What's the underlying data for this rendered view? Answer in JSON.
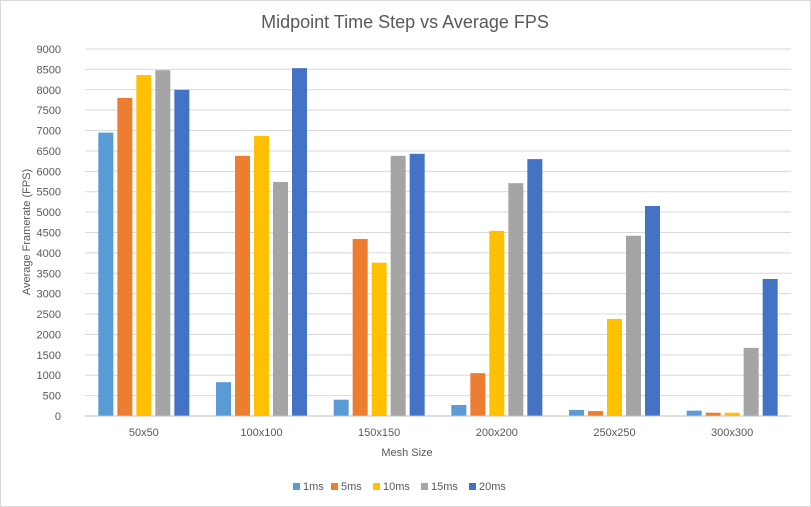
{
  "chart_data": {
    "type": "bar",
    "title": "Midpoint Time Step vs Average FPS",
    "xlabel": "Mesh Size",
    "ylabel": "Average Framerate (FPS)",
    "ylim": [
      0,
      9000
    ],
    "ytick_step": 500,
    "grid": true,
    "legend_position": "bottom",
    "categories": [
      "50x50",
      "100x100",
      "150x150",
      "200x200",
      "250x250",
      "300x300"
    ],
    "series": [
      {
        "name": "1ms",
        "color": "#5b9bd5",
        "values": [
          6950,
          830,
          400,
          270,
          150,
          130
        ]
      },
      {
        "name": "5ms",
        "color": "#ed7d31",
        "values": [
          7800,
          6380,
          4340,
          1050,
          120,
          80
        ]
      },
      {
        "name": "10ms",
        "color": "#ffc000",
        "values": [
          8360,
          6870,
          3760,
          4540,
          2380,
          80
        ]
      },
      {
        "name": "15ms",
        "color": "#a5a5a5",
        "values": [
          8480,
          5740,
          6380,
          5710,
          4420,
          1670
        ]
      },
      {
        "name": "20ms",
        "color": "#4472c4",
        "values": [
          8000,
          8530,
          6430,
          6300,
          5150,
          3360
        ]
      }
    ]
  }
}
